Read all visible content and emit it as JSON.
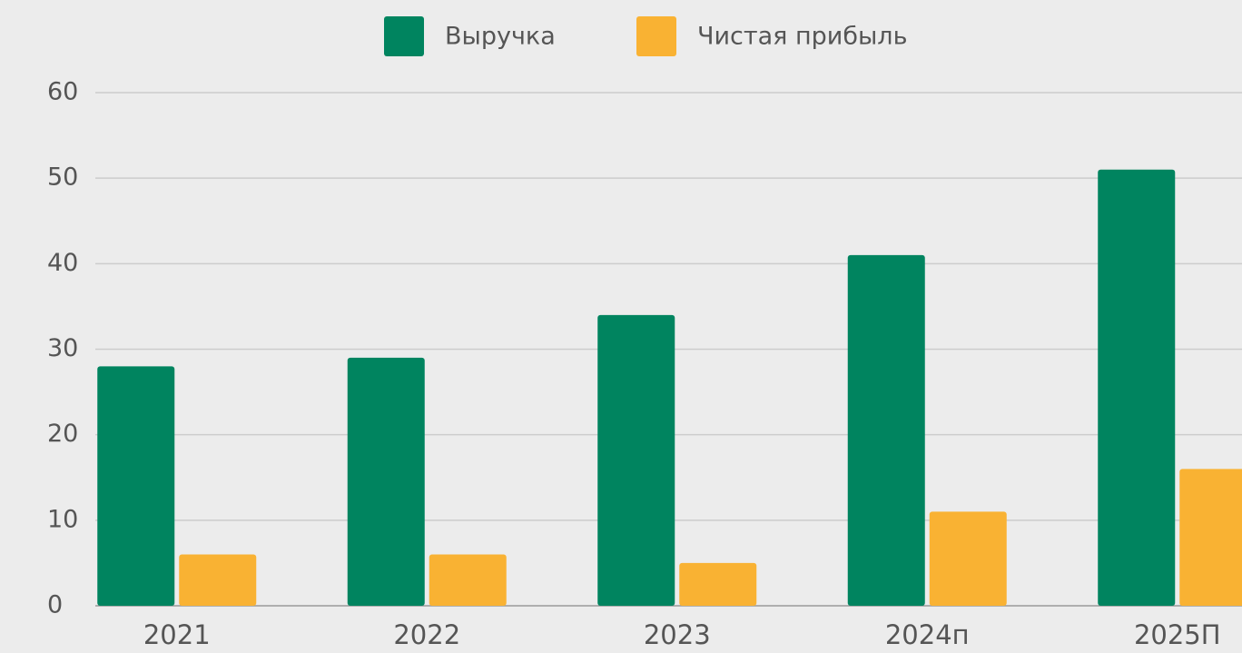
{
  "chart_data": {
    "type": "bar",
    "categories": [
      "2021",
      "2022",
      "2023",
      "2024п",
      "2025П"
    ],
    "series": [
      {
        "name": "Выручка",
        "color": "#00845f",
        "values": [
          28,
          29,
          34,
          41,
          51
        ]
      },
      {
        "name": "Чистая прибыль",
        "color": "#f9b233",
        "values": [
          6,
          6,
          5,
          11,
          16
        ]
      }
    ],
    "ylim": [
      0,
      60
    ],
    "yticks": [
      0,
      10,
      20,
      30,
      40,
      50,
      60
    ],
    "grid": true,
    "legend": "top"
  }
}
